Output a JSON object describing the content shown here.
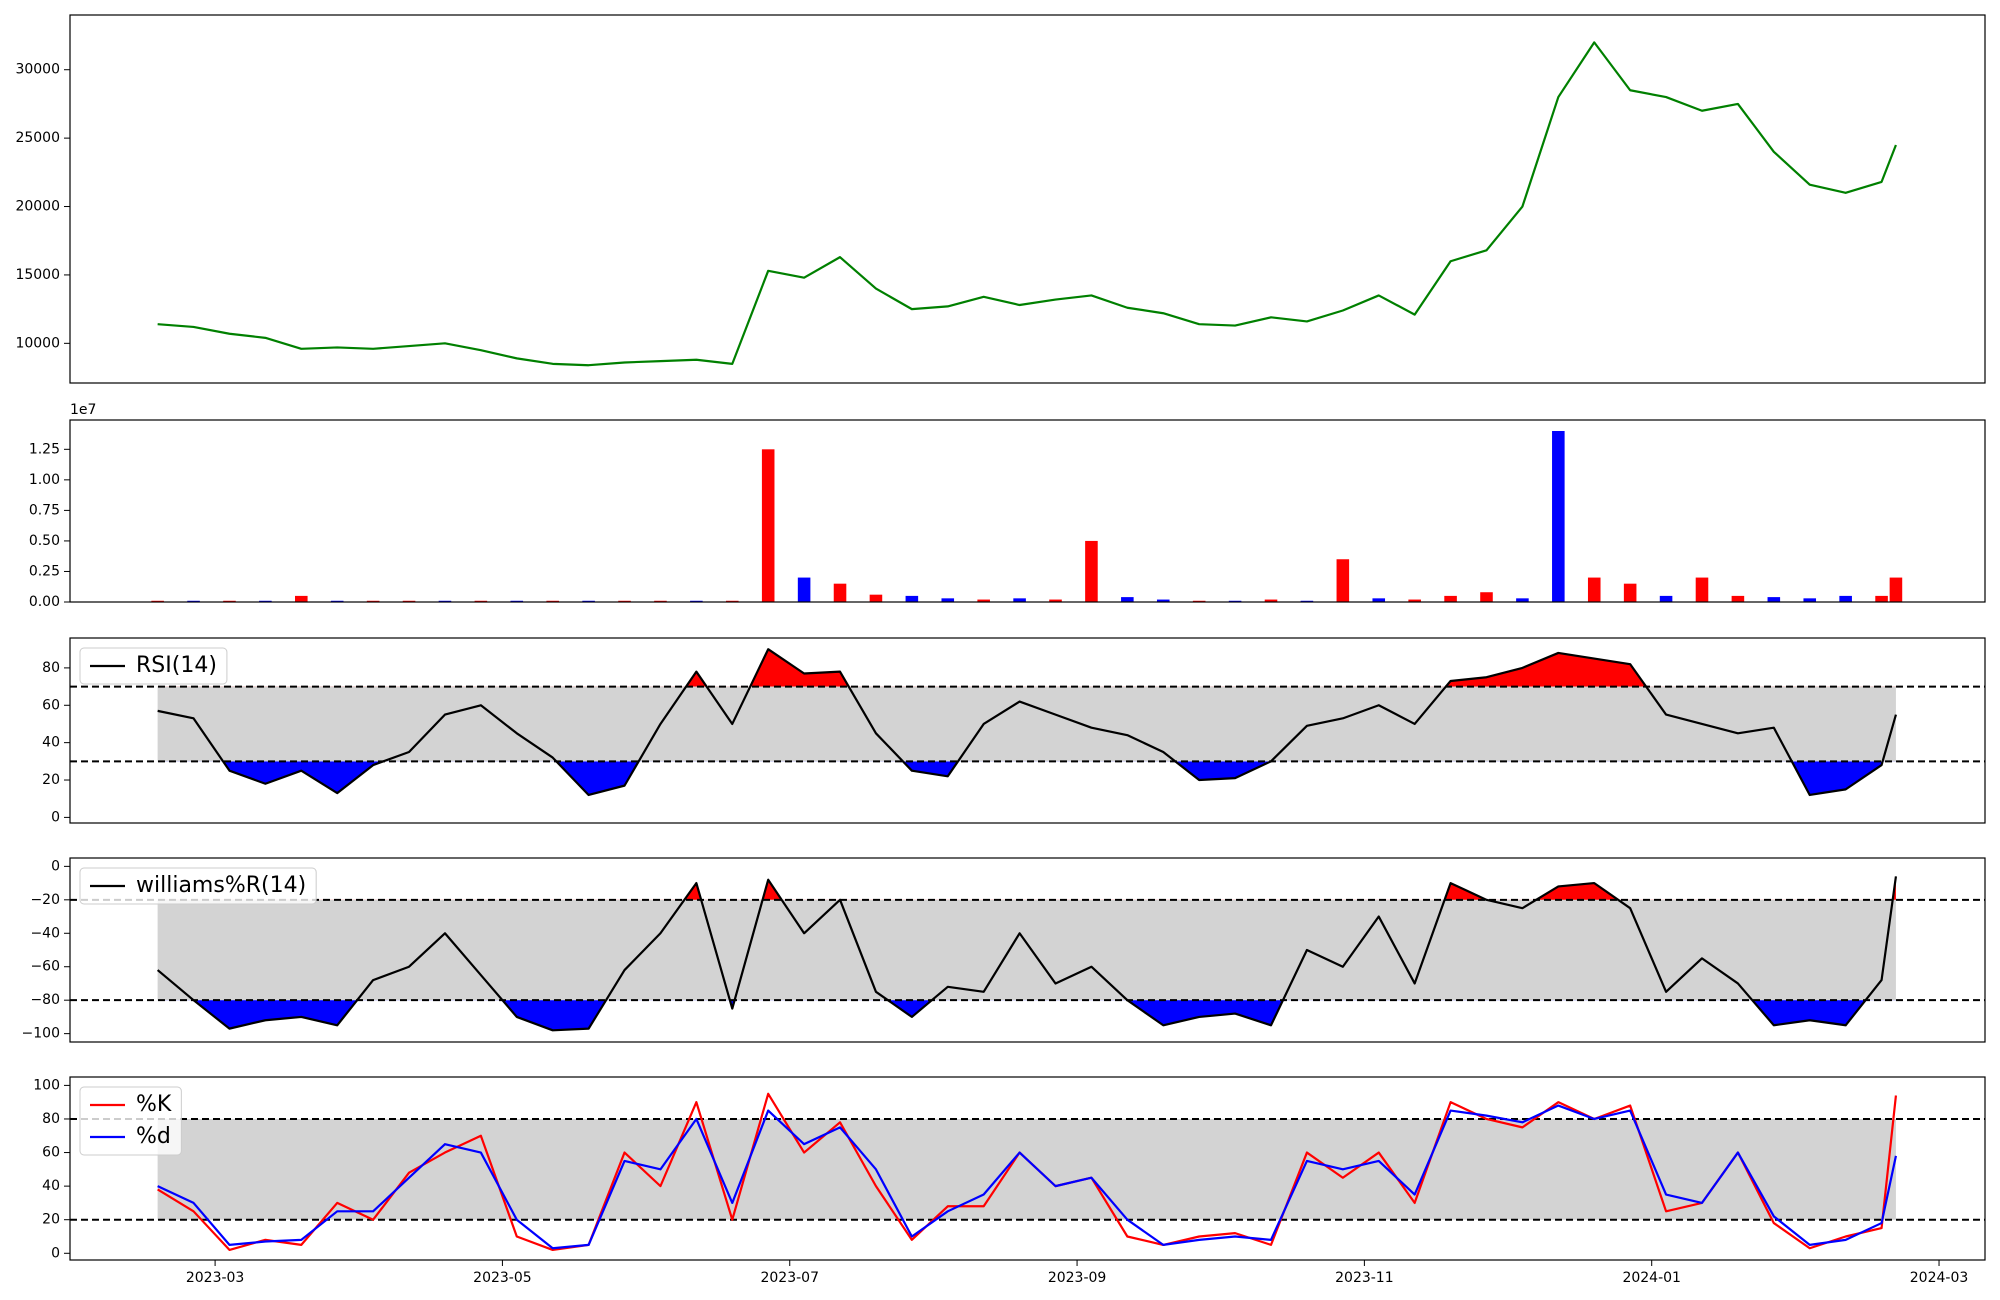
{
  "chart_data": [
    {
      "type": "line",
      "x": [
        2.6,
        2.85,
        3.1,
        3.35,
        3.6,
        3.85,
        4.1,
        4.35,
        4.6,
        4.85,
        5.1,
        5.35,
        5.6,
        5.85,
        6.1,
        6.35,
        6.6,
        6.85,
        7.1,
        7.35,
        7.6,
        7.85,
        8.1,
        8.35,
        8.6,
        8.85,
        9.1,
        9.35,
        9.6,
        9.85,
        10.1,
        10.35,
        10.6,
        10.85,
        11.1,
        11.35,
        11.6,
        11.85,
        12.1,
        12.35,
        12.6,
        12.85,
        13.1,
        13.35,
        13.6,
        13.85,
        14.1,
        14.35,
        14.6,
        14.7
      ],
      "xlim": [
        1.99,
        15.32
      ],
      "ylim": [
        7100,
        34000
      ],
      "yticks": [
        10000,
        15000,
        20000,
        25000,
        30000
      ],
      "series": [
        {
          "color": "#008000",
          "values": [
            11400,
            11200,
            10700,
            10400,
            9600,
            9700,
            9600,
            9800,
            10000,
            9500,
            8900,
            8500,
            8400,
            8600,
            8700,
            8800,
            8500,
            15300,
            14800,
            16300,
            14000,
            12500,
            12700,
            13400,
            12800,
            13200,
            13500,
            12600,
            12200,
            11400,
            11300,
            11900,
            11600,
            12400,
            13500,
            12100,
            16000,
            16800,
            20000,
            28000,
            32000,
            28500,
            28000,
            27000,
            27500,
            24000,
            21600,
            21000,
            21800,
            24500
          ]
        }
      ]
    },
    {
      "type": "bar",
      "x": [
        2.6,
        2.85,
        3.1,
        3.35,
        3.6,
        3.85,
        4.1,
        4.35,
        4.6,
        4.85,
        5.1,
        5.35,
        5.6,
        5.85,
        6.1,
        6.35,
        6.6,
        6.85,
        7.1,
        7.35,
        7.6,
        7.85,
        8.1,
        8.35,
        8.6,
        8.85,
        9.1,
        9.35,
        9.6,
        9.85,
        10.1,
        10.35,
        10.6,
        10.85,
        11.1,
        11.35,
        11.6,
        11.85,
        12.1,
        12.35,
        12.6,
        12.85,
        13.1,
        13.35,
        13.6,
        13.85,
        14.1,
        14.35,
        14.6,
        14.7
      ],
      "xlim": [
        1.99,
        15.32
      ],
      "offset_text": "1e7",
      "ylim": [
        0,
        1.49
      ],
      "yticks": [
        {
          "value": 0,
          "label": "0.00"
        },
        {
          "value": 0.25,
          "label": "0.25"
        },
        {
          "value": 0.5,
          "label": "0.50"
        },
        {
          "value": 0.75,
          "label": "0.75"
        },
        {
          "value": 1,
          "label": "1.00"
        },
        {
          "value": 1.25,
          "label": "1.25"
        }
      ],
      "values": [
        0.01,
        0.01,
        0.01,
        0.01,
        0.05,
        0.01,
        0.01,
        0.01,
        0.01,
        0.01,
        0.01,
        0.01,
        0.01,
        0.01,
        0.01,
        0.01,
        0.01,
        1.25,
        0.2,
        0.15,
        0.06,
        0.05,
        0.03,
        0.02,
        0.03,
        0.02,
        0.5,
        0.04,
        0.02,
        0.01,
        0.01,
        0.02,
        0.01,
        0.35,
        0.03,
        0.02,
        0.05,
        0.08,
        0.03,
        1.4,
        0.2,
        0.15,
        0.05,
        0.2,
        0.05,
        0.04,
        0.03,
        0.05,
        0.05,
        0.2
      ],
      "colors": [
        "red",
        "blue",
        "red",
        "blue",
        "red",
        "blue",
        "red",
        "red",
        "blue",
        "red",
        "blue",
        "red",
        "blue",
        "red",
        "red",
        "blue",
        "red",
        "red",
        "blue",
        "red",
        "red",
        "blue",
        "blue",
        "red",
        "blue",
        "red",
        "red",
        "blue",
        "blue",
        "red",
        "blue",
        "red",
        "blue",
        "red",
        "blue",
        "red",
        "red",
        "red",
        "blue",
        "blue",
        "red",
        "red",
        "blue",
        "red",
        "red",
        "blue",
        "blue",
        "blue",
        "red",
        "red"
      ]
    },
    {
      "type": "line",
      "x": [
        2.6,
        2.85,
        3.1,
        3.35,
        3.6,
        3.85,
        4.1,
        4.35,
        4.6,
        4.85,
        5.1,
        5.35,
        5.6,
        5.85,
        6.1,
        6.35,
        6.6,
        6.85,
        7.1,
        7.35,
        7.6,
        7.85,
        8.1,
        8.35,
        8.6,
        8.85,
        9.1,
        9.35,
        9.6,
        9.85,
        10.1,
        10.35,
        10.6,
        10.85,
        11.1,
        11.35,
        11.6,
        11.85,
        12.1,
        12.35,
        12.6,
        12.85,
        13.1,
        13.35,
        13.6,
        13.85,
        14.1,
        14.35,
        14.6,
        14.7
      ],
      "xlim": [
        1.99,
        15.32
      ],
      "ylim": [
        -3,
        96
      ],
      "yticks": [
        0,
        20,
        40,
        60,
        80
      ],
      "bands": [
        30,
        70
      ],
      "band_color": "#d3d3d3",
      "fill_above": "red",
      "fill_below": "blue",
      "legend": "upper left",
      "series": [
        {
          "name": "RSI(14)",
          "color": "#000000",
          "values": [
            57,
            53,
            25,
            18,
            25,
            13,
            28,
            35,
            55,
            60,
            45,
            32,
            12,
            17,
            50,
            78,
            50,
            90,
            77,
            78,
            45,
            25,
            22,
            50,
            62,
            55,
            48,
            44,
            35,
            20,
            21,
            30,
            49,
            53,
            60,
            50,
            73,
            75,
            80,
            88,
            85,
            82,
            55,
            50,
            45,
            48,
            12,
            15,
            28,
            55
          ]
        }
      ]
    },
    {
      "type": "line",
      "x": [
        2.6,
        2.85,
        3.1,
        3.35,
        3.6,
        3.85,
        4.1,
        4.35,
        4.6,
        4.85,
        5.1,
        5.35,
        5.6,
        5.85,
        6.1,
        6.35,
        6.6,
        6.85,
        7.1,
        7.35,
        7.6,
        7.85,
        8.1,
        8.35,
        8.6,
        8.85,
        9.1,
        9.35,
        9.6,
        9.85,
        10.1,
        10.35,
        10.6,
        10.85,
        11.1,
        11.35,
        11.6,
        11.85,
        12.1,
        12.35,
        12.6,
        12.85,
        13.1,
        13.35,
        13.6,
        13.85,
        14.1,
        14.35,
        14.6,
        14.7
      ],
      "xlim": [
        1.99,
        15.32
      ],
      "ylim": [
        -105,
        5
      ],
      "yticks": [
        {
          "value": -100,
          "label": "−100"
        },
        {
          "value": -80,
          "label": "−80"
        },
        {
          "value": -60,
          "label": "−60"
        },
        {
          "value": -40,
          "label": "−40"
        },
        {
          "value": -20,
          "label": "−20"
        },
        0
      ],
      "bands": [
        -80,
        -20
      ],
      "band_color": "#d3d3d3",
      "fill_above": "red",
      "fill_below": "blue",
      "legend": "upper left",
      "series": [
        {
          "name": "williams%R(14)",
          "color": "#000000",
          "values": [
            -62,
            -80,
            -97,
            -92,
            -90,
            -95,
            -68,
            -60,
            -40,
            -65,
            -90,
            -98,
            -97,
            -62,
            -40,
            -10,
            -85,
            -8,
            -40,
            -20,
            -75,
            -90,
            -72,
            -75,
            -40,
            -70,
            -60,
            -80,
            -95,
            -90,
            -88,
            -95,
            -50,
            -60,
            -30,
            -70,
            -10,
            -20,
            -25,
            -12,
            -10,
            -25,
            -75,
            -55,
            -70,
            -95,
            -92,
            -95,
            -68,
            -6
          ]
        }
      ]
    },
    {
      "type": "line",
      "x": [
        2.6,
        2.85,
        3.1,
        3.35,
        3.6,
        3.85,
        4.1,
        4.35,
        4.6,
        4.85,
        5.1,
        5.35,
        5.6,
        5.85,
        6.1,
        6.35,
        6.6,
        6.85,
        7.1,
        7.35,
        7.6,
        7.85,
        8.1,
        8.35,
        8.6,
        8.85,
        9.1,
        9.35,
        9.6,
        9.85,
        10.1,
        10.35,
        10.6,
        10.85,
        11.1,
        11.35,
        11.6,
        11.85,
        12.1,
        12.35,
        12.6,
        12.85,
        13.1,
        13.35,
        13.6,
        13.85,
        14.1,
        14.35,
        14.6,
        14.7
      ],
      "xlim": [
        1.99,
        15.32
      ],
      "xticks": [
        {
          "value": 3,
          "label": "2023-03"
        },
        {
          "value": 5,
          "label": "2023-05"
        },
        {
          "value": 7,
          "label": "2023-07"
        },
        {
          "value": 9,
          "label": "2023-09"
        },
        {
          "value": 11,
          "label": "2023-11"
        },
        {
          "value": 13,
          "label": "2024-01"
        },
        {
          "value": 15,
          "label": "2024-03"
        }
      ],
      "ylim": [
        -4,
        105
      ],
      "yticks": [
        0,
        20,
        40,
        60,
        80,
        100
      ],
      "bands": [
        20,
        80
      ],
      "band_color": "#d3d3d3",
      "legend": "upper left",
      "series": [
        {
          "name": "%K",
          "color": "#ff0000",
          "values": [
            38,
            25,
            2,
            8,
            5,
            30,
            20,
            48,
            60,
            70,
            10,
            2,
            5,
            60,
            40,
            90,
            20,
            95,
            60,
            78,
            40,
            8,
            28,
            28,
            60,
            40,
            45,
            10,
            5,
            10,
            12,
            5,
            60,
            45,
            60,
            30,
            90,
            80,
            75,
            90,
            80,
            88,
            25,
            30,
            60,
            18,
            3,
            10,
            15,
            94
          ]
        },
        {
          "name": "%d",
          "color": "#0000ff",
          "values": [
            40,
            30,
            5,
            7,
            8,
            25,
            25,
            45,
            65,
            60,
            20,
            3,
            5,
            55,
            50,
            80,
            30,
            85,
            65,
            75,
            50,
            10,
            25,
            35,
            60,
            40,
            45,
            20,
            5,
            8,
            10,
            8,
            55,
            50,
            55,
            35,
            85,
            82,
            78,
            88,
            80,
            85,
            35,
            30,
            60,
            22,
            5,
            8,
            18,
            58
          ]
        }
      ]
    }
  ]
}
